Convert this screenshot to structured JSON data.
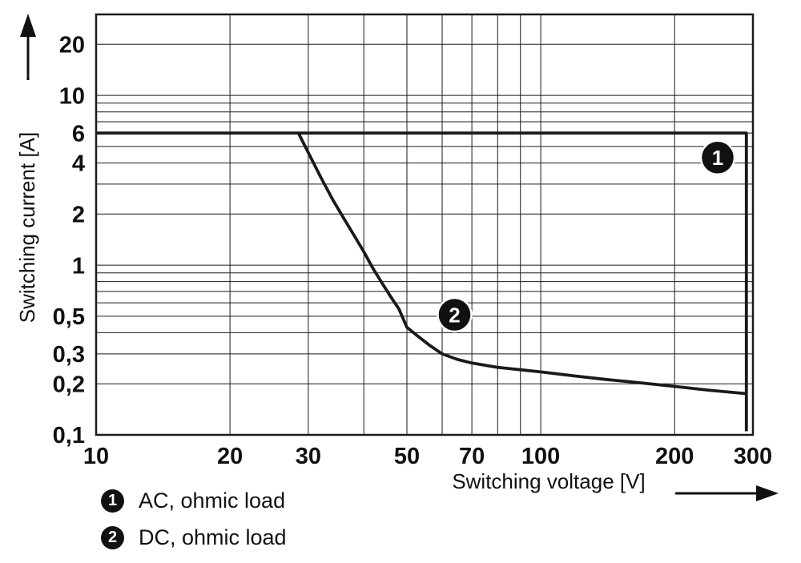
{
  "colors": {
    "background": "#ffffff",
    "line": "#1a1a1a",
    "grid": "#1a1a1a",
    "marker_bg": "#111111",
    "marker_text": "#ffffff"
  },
  "chart_data": {
    "type": "line",
    "title": "",
    "xlabel": "Switching voltage [V]",
    "ylabel": "Switching current [A]",
    "x_scale": "log",
    "y_scale": "log",
    "xlim": [
      10,
      300
    ],
    "ylim": [
      0.1,
      30
    ],
    "grid": true,
    "x_ticks": [
      {
        "v": 10,
        "label": "10"
      },
      {
        "v": 20,
        "label": "20"
      },
      {
        "v": 30,
        "label": "30"
      },
      {
        "v": 50,
        "label": "50"
      },
      {
        "v": 70,
        "label": "70"
      },
      {
        "v": 100,
        "label": "100"
      },
      {
        "v": 200,
        "label": "200"
      },
      {
        "v": 300,
        "label": "300"
      }
    ],
    "y_ticks": [
      {
        "v": 0.1,
        "label": "0,1"
      },
      {
        "v": 0.2,
        "label": "0,2"
      },
      {
        "v": 0.3,
        "label": "0,3"
      },
      {
        "v": 0.5,
        "label": "0,5"
      },
      {
        "v": 1,
        "label": "1"
      },
      {
        "v": 2,
        "label": "2"
      },
      {
        "v": 4,
        "label": "4"
      },
      {
        "v": 6,
        "label": "6"
      },
      {
        "v": 10,
        "label": "10"
      },
      {
        "v": 20,
        "label": "20"
      }
    ],
    "x_grid": [
      20,
      30,
      40,
      50,
      60,
      70,
      80,
      90,
      100,
      200
    ],
    "y_grid": [
      0.2,
      0.3,
      0.4,
      0.5,
      0.6,
      0.7,
      0.8,
      0.9,
      1,
      2,
      3,
      4,
      5,
      6,
      7,
      8,
      9,
      10,
      20
    ],
    "series": [
      {
        "name": "AC, ohmic load",
        "badge": "1",
        "points": [
          [
            10,
            6
          ],
          [
            290,
            6
          ],
          [
            290,
            0.105
          ]
        ]
      },
      {
        "name": "DC, ohmic load",
        "badge": "2",
        "points": [
          [
            28.5,
            6
          ],
          [
            30,
            4.6
          ],
          [
            32,
            3.3
          ],
          [
            34,
            2.45
          ],
          [
            36,
            1.9
          ],
          [
            38,
            1.5
          ],
          [
            40,
            1.2
          ],
          [
            42,
            0.95
          ],
          [
            44,
            0.78
          ],
          [
            46,
            0.65
          ],
          [
            48,
            0.55
          ],
          [
            50,
            0.43
          ],
          [
            53,
            0.38
          ],
          [
            56,
            0.34
          ],
          [
            60,
            0.3
          ],
          [
            65,
            0.278
          ],
          [
            70,
            0.265
          ],
          [
            80,
            0.25
          ],
          [
            90,
            0.242
          ],
          [
            100,
            0.235
          ],
          [
            120,
            0.222
          ],
          [
            140,
            0.212
          ],
          [
            160,
            0.205
          ],
          [
            200,
            0.193
          ],
          [
            240,
            0.183
          ],
          [
            290,
            0.175
          ]
        ]
      }
    ],
    "markers": [
      {
        "label": "1",
        "x": 250,
        "y": 4.3
      },
      {
        "label": "2",
        "x": 64,
        "y": 0.51
      }
    ],
    "legend_position": "bottom-left"
  },
  "legend": {
    "items": [
      {
        "badge": "1",
        "label": "AC, ohmic load"
      },
      {
        "badge": "2",
        "label": "DC, ohmic load"
      }
    ]
  }
}
